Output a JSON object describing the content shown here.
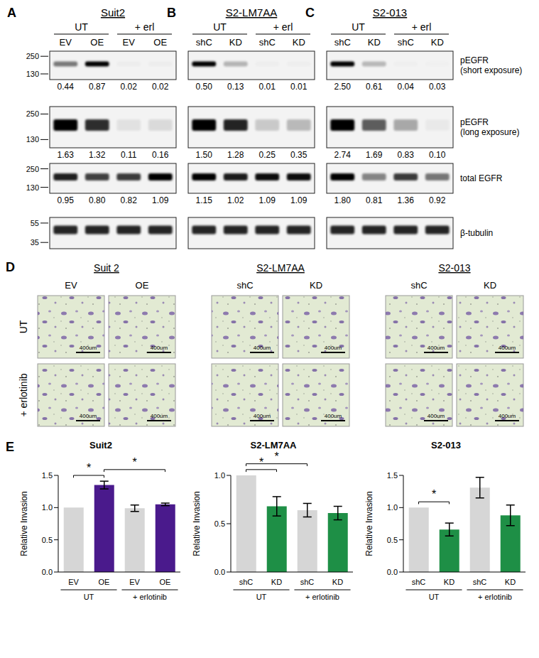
{
  "figure": {
    "panel_labels": [
      "A",
      "B",
      "C",
      "D",
      "E"
    ],
    "blots": {
      "row_labels": [
        [
          "pEGFR",
          "(short exposure)"
        ],
        [
          "pEGFR",
          "(long exposure)"
        ],
        [
          "total EGFR"
        ],
        [
          "β-tubulin"
        ]
      ],
      "markers": [
        [
          250,
          130
        ],
        [
          250,
          130
        ],
        [
          250,
          130
        ],
        [
          55,
          35
        ]
      ],
      "panels": [
        {
          "title": "Suit2",
          "groups": [
            "UT",
            "+ erl"
          ],
          "lanes": [
            "EV",
            "OE",
            "EV",
            "OE"
          ],
          "quant": [
            [
              "0.44",
              "0.87",
              "0.02",
              "0.02"
            ],
            [
              "1.63",
              "1.32",
              "0.11",
              "0.16"
            ],
            [
              "0.95",
              "0.80",
              "0.82",
              "1.09"
            ]
          ]
        },
        {
          "title": "S2-LM7AA",
          "groups": [
            "UT",
            "+ erl"
          ],
          "lanes": [
            "shC",
            "KD",
            "shC",
            "KD"
          ],
          "quant": [
            [
              "0.50",
              "0.13",
              "0.01",
              "0.01"
            ],
            [
              "1.50",
              "1.28",
              "0.25",
              "0.35"
            ],
            [
              "1.15",
              "1.02",
              "1.09",
              "1.09"
            ]
          ]
        },
        {
          "title": "S2-013",
          "groups": [
            "UT",
            "+ erl"
          ],
          "lanes": [
            "shC",
            "KD",
            "shC",
            "KD"
          ],
          "quant": [
            [
              "2.50",
              "0.61",
              "0.04",
              "0.03"
            ],
            [
              "2.74",
              "1.69",
              "0.83",
              "0.10"
            ],
            [
              "1.80",
              "0.81",
              "1.36",
              "0.92"
            ]
          ]
        }
      ]
    },
    "micrographs": {
      "row_labels": [
        "UT",
        "+ erlotinib"
      ],
      "scale_bar": "400um",
      "panels": [
        {
          "title": "Suit 2",
          "columns": [
            "EV",
            "OE"
          ]
        },
        {
          "title": "S2-LM7AA",
          "columns": [
            "shC",
            "KD"
          ]
        },
        {
          "title": "S2-013",
          "columns": [
            "shC",
            "KD"
          ]
        }
      ]
    }
  },
  "chart_data": [
    {
      "type": "bar",
      "title": "Suit2",
      "y_label": "Relative Invasion",
      "categories": [
        "EV",
        "OE",
        "EV",
        "OE"
      ],
      "groups": [
        {
          "label": "UT",
          "span": 2
        },
        {
          "label": "+ erlotinib",
          "span": 2
        }
      ],
      "values": [
        1.0,
        1.35,
        0.99,
        1.05
      ],
      "errors": [
        null,
        0.06,
        0.05,
        0.02
      ],
      "colors": [
        "#d6d6d6",
        "#4a1a8c",
        "#d6d6d6",
        "#4a1a8c"
      ],
      "ylim": [
        0,
        1.5
      ],
      "yticks": [
        {
          "value": 0,
          "label": "0.0"
        },
        {
          "value": 0.5,
          "label": "0.5"
        },
        {
          "value": 1,
          "label": "1.0"
        },
        {
          "value": 1.5,
          "label": "1.5"
        }
      ],
      "significance": [
        {
          "pair": [
            0,
            1
          ],
          "label": "*"
        },
        {
          "pair": [
            1,
            3
          ],
          "label": "*"
        }
      ]
    },
    {
      "type": "bar",
      "title": "S2-LM7AA",
      "y_label": "Relative Invasion",
      "categories": [
        "shC",
        "KD",
        "shC",
        "KD"
      ],
      "groups": [
        {
          "label": "UT",
          "span": 2
        },
        {
          "label": "+ erlotinib",
          "span": 2
        }
      ],
      "values": [
        1.0,
        0.68,
        0.64,
        0.61
      ],
      "errors": [
        null,
        0.1,
        0.07,
        0.07
      ],
      "colors": [
        "#d6d6d6",
        "#1e8f46",
        "#d6d6d6",
        "#1e8f46"
      ],
      "ylim": [
        0,
        1.0
      ],
      "yticks": [
        {
          "value": 0,
          "label": "0.0"
        },
        {
          "value": 0.5,
          "label": "0.5"
        },
        {
          "value": 1,
          "label": "1.0"
        }
      ],
      "significance": [
        {
          "pair": [
            0,
            1
          ],
          "label": "*"
        },
        {
          "pair": [
            0,
            2
          ],
          "label": "*"
        }
      ]
    },
    {
      "type": "bar",
      "title": "S2-013",
      "y_label": "Relative Invasion",
      "categories": [
        "shC",
        "KD",
        "shC",
        "KD"
      ],
      "groups": [
        {
          "label": "UT",
          "span": 2
        },
        {
          "label": "+ erlotinib",
          "span": 2
        }
      ],
      "values": [
        1.0,
        0.66,
        1.31,
        0.88
      ],
      "errors": [
        null,
        0.1,
        0.16,
        0.16
      ],
      "colors": [
        "#d6d6d6",
        "#1e8f46",
        "#d6d6d6",
        "#1e8f46"
      ],
      "ylim": [
        0,
        1.5
      ],
      "yticks": [
        {
          "value": 0,
          "label": "0.0"
        },
        {
          "value": 0.5,
          "label": "0.5"
        },
        {
          "value": 1,
          "label": "1.0"
        },
        {
          "value": 1.5,
          "label": "1.5"
        }
      ],
      "significance": [
        {
          "pair": [
            0,
            1
          ],
          "label": "*"
        }
      ]
    }
  ]
}
